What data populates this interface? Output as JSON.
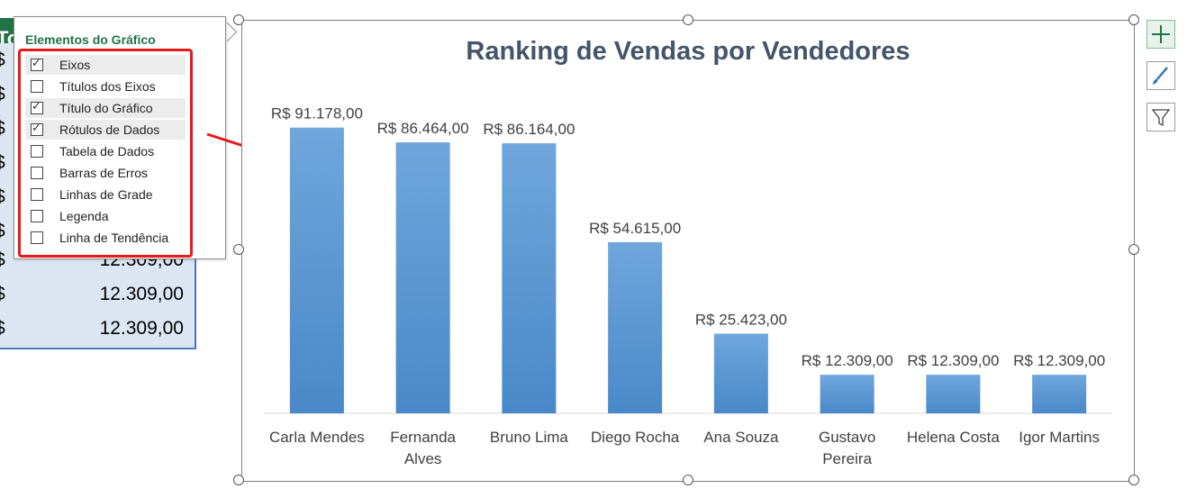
{
  "sheet": {
    "header_letters": "To",
    "rows": [
      {
        "left_fragment": "$",
        "value": ""
      },
      {
        "left_fragment": "$",
        "value": ""
      },
      {
        "left_fragment": "$",
        "value": ""
      },
      {
        "left_fragment": "$",
        "value": ""
      },
      {
        "left_fragment": "$",
        "value": ""
      },
      {
        "left_fragment": "$",
        "value": ""
      },
      {
        "left_fragment": "$",
        "value": "12.309,00"
      },
      {
        "left_fragment": "$",
        "value": "12.309,00"
      },
      {
        "left_fragment": "$",
        "value": "12.309,00"
      }
    ]
  },
  "flyout": {
    "title": "Elementos do Gráfico",
    "options": [
      {
        "label": "Eixos",
        "checked": true
      },
      {
        "label": "Títulos dos Eixos",
        "checked": false
      },
      {
        "label": "Título do Gráfico",
        "checked": true
      },
      {
        "label": "Rótulos de Dados",
        "checked": true
      },
      {
        "label": "Tabela de Dados",
        "checked": false
      },
      {
        "label": "Barras de Erros",
        "checked": false
      },
      {
        "label": "Linhas de Grade",
        "checked": false
      },
      {
        "label": "Legenda",
        "checked": false
      },
      {
        "label": "Linha de Tendência",
        "checked": false
      }
    ],
    "tick_glyph": "✓"
  },
  "toolbar": {
    "buttons": [
      {
        "name": "chart-elements-button",
        "icon": "plus-icon"
      },
      {
        "name": "chart-styles-button",
        "icon": "brush-icon"
      },
      {
        "name": "chart-filters-button",
        "icon": "filter-icon"
      }
    ]
  },
  "colors": {
    "bar_top": "#6fa6dc",
    "bar_bottom": "#4a88c9",
    "title": "#44546a",
    "accent_green": "#217346",
    "highlight_red": "#e8191b"
  },
  "chart_data": {
    "type": "bar",
    "title": "Ranking de Vendas por Vendedores",
    "categories": [
      "Carla Mendes",
      "Fernanda Alves",
      "Bruno Lima",
      "Diego Rocha",
      "Ana Souza",
      "Gustavo Pereira",
      "Helena Costa",
      "Igor Martins"
    ],
    "category_lines": [
      [
        "Carla Mendes"
      ],
      [
        "Fernanda",
        "Alves"
      ],
      [
        "Bruno Lima"
      ],
      [
        "Diego Rocha"
      ],
      [
        "Ana Souza"
      ],
      [
        "Gustavo",
        "Pereira"
      ],
      [
        "Helena Costa"
      ],
      [
        "Igor Martins"
      ]
    ],
    "values": [
      91178,
      86464,
      86164,
      54615,
      25423,
      12309,
      12309,
      12309
    ],
    "data_labels": [
      "R$ 91.178,00",
      "R$ 86.464,00",
      "R$ 86.164,00",
      "R$ 54.615,00",
      "R$ 25.423,00",
      "R$ 12.309,00",
      "R$ 12.309,00",
      "R$ 12.309,00"
    ],
    "ylim": [
      0,
      100000
    ],
    "grid": false,
    "legend": "none"
  }
}
